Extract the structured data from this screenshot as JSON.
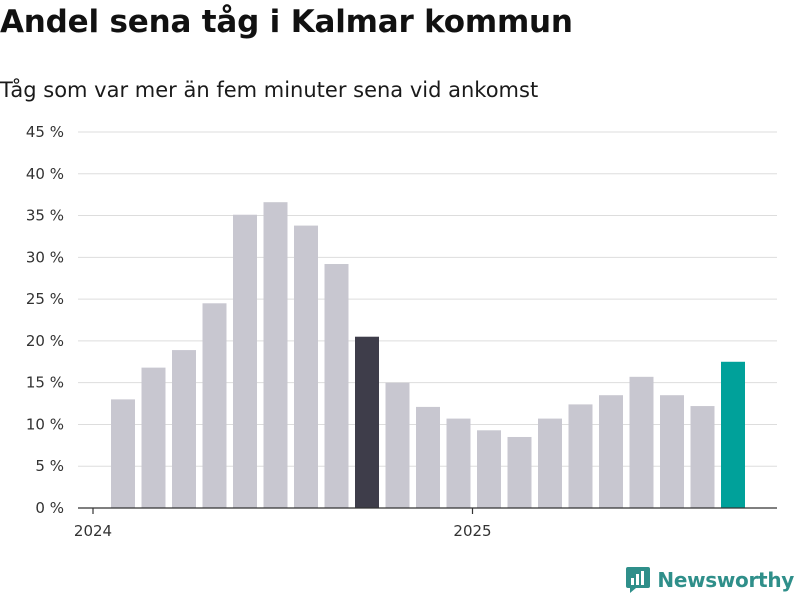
{
  "title": "Andel sena tåg i Kalmar kommun",
  "subtitle": "Tåg som var mer än fem minuter sena vid ankomst",
  "brand": {
    "name": "Newsworthy",
    "icon": "newsworthy-logo-icon",
    "color": "#2f8f8a"
  },
  "colors": {
    "default_bar": "#c8c7d0",
    "highlight_bar": "#3e3d4a",
    "latest_bar": "#00a19a",
    "grid": "#dddddd",
    "axis": "#333333"
  },
  "chart_data": {
    "type": "bar",
    "title": "Andel sena tåg i Kalmar kommun",
    "subtitle": "Tåg som var mer än fem minuter sena vid ankomst",
    "xlabel": "",
    "ylabel": "",
    "ylim": [
      0,
      45
    ],
    "yticks": [
      0,
      5,
      10,
      15,
      20,
      25,
      30,
      35,
      40,
      45
    ],
    "ytick_suffix": " %",
    "grid": true,
    "legend": "none",
    "categories": [
      "2024-01",
      "2024-02",
      "2024-03",
      "2024-04",
      "2024-05",
      "2024-06",
      "2024-07",
      "2024-08",
      "2024-09",
      "2024-10",
      "2024-11",
      "2024-12",
      "2025-01",
      "2025-02",
      "2025-03",
      "2025-04",
      "2025-05",
      "2025-06",
      "2025-07",
      "2025-08",
      "2025-09"
    ],
    "values": [
      13.0,
      16.8,
      18.9,
      24.5,
      35.1,
      36.6,
      33.8,
      29.2,
      20.5,
      15.0,
      12.1,
      10.7,
      9.3,
      8.5,
      10.7,
      12.4,
      13.5,
      15.7,
      13.5,
      12.2,
      17.5
    ],
    "highlight_index": 8,
    "latest_index": 20,
    "x_tick_labels": [
      {
        "label": "2024",
        "category": "2024-01"
      },
      {
        "label": "2025",
        "category": "2025-01"
      }
    ]
  }
}
